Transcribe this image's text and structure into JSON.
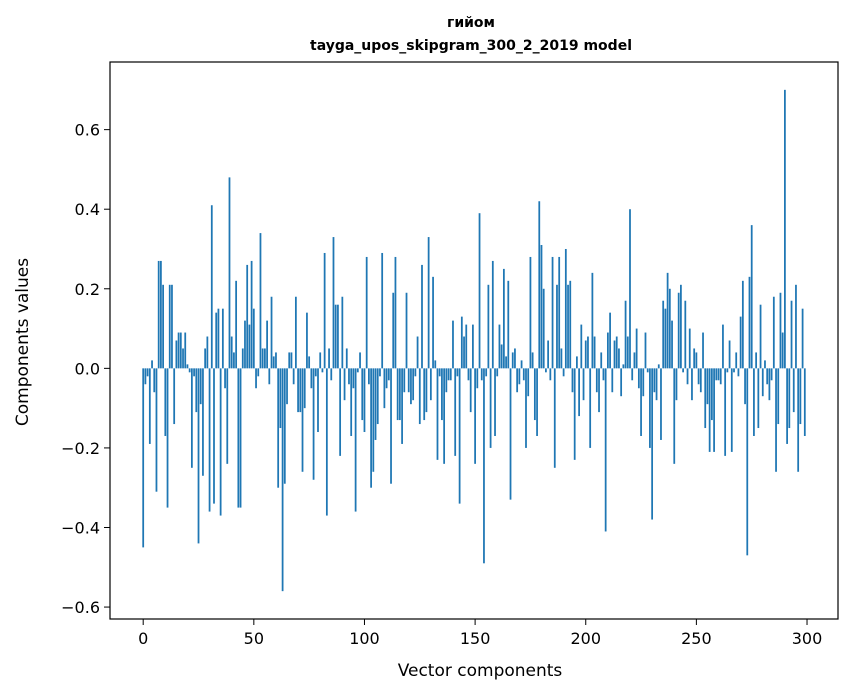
{
  "chart_data": {
    "type": "bar",
    "title_line1": "гийом",
    "title_line2": "tayga_upos_skipgram_300_2_2019 model",
    "xlabel": "Vector components",
    "ylabel": "Components values",
    "xlim": [
      -15,
      314
    ],
    "ylim": [
      -0.63,
      0.77
    ],
    "xticks": [
      0,
      50,
      100,
      150,
      200,
      250,
      300
    ],
    "xtick_labels": [
      "0",
      "50",
      "100",
      "150",
      "200",
      "250",
      "300"
    ],
    "yticks": [
      -0.6,
      -0.4,
      -0.2,
      0.0,
      0.2,
      0.4,
      0.6
    ],
    "ytick_labels": [
      "−0.6",
      "−0.4",
      "−0.2",
      "0.0",
      "0.2",
      "0.4",
      "0.6"
    ],
    "bar_color": "#1f77b4",
    "values": [
      -0.45,
      -0.04,
      -0.02,
      -0.19,
      0.02,
      -0.06,
      -0.31,
      0.27,
      0.27,
      0.21,
      -0.17,
      -0.35,
      0.21,
      0.21,
      -0.14,
      0.07,
      0.09,
      0.09,
      0.05,
      0.09,
      0.01,
      -0.01,
      -0.25,
      -0.02,
      -0.11,
      -0.44,
      -0.09,
      -0.27,
      0.05,
      0.08,
      -0.36,
      0.41,
      -0.34,
      0.14,
      0.15,
      -0.37,
      0.15,
      -0.05,
      -0.24,
      0.48,
      0.08,
      0.04,
      0.22,
      -0.35,
      -0.35,
      0.05,
      0.12,
      0.26,
      0.11,
      0.27,
      0.15,
      -0.05,
      -0.02,
      0.34,
      0.05,
      0.05,
      0.12,
      -0.04,
      0.18,
      0.03,
      0.04,
      -0.3,
      -0.15,
      -0.56,
      -0.29,
      -0.09,
      0.04,
      0.04,
      -0.04,
      0.18,
      -0.11,
      -0.11,
      -0.26,
      -0.1,
      0.14,
      0.03,
      -0.05,
      -0.28,
      -0.02,
      -0.16,
      0.04,
      -0.01,
      0.29,
      -0.37,
      0.05,
      -0.03,
      0.33,
      0.16,
      0.16,
      -0.22,
      0.18,
      -0.08,
      0.05,
      -0.04,
      -0.17,
      -0.05,
      -0.36,
      -0.01,
      0.04,
      -0.13,
      -0.16,
      0.28,
      -0.04,
      -0.3,
      -0.26,
      -0.18,
      -0.14,
      -0.02,
      0.29,
      -0.1,
      -0.05,
      -0.03,
      -0.29,
      0.19,
      0.28,
      -0.13,
      -0.13,
      -0.19,
      -0.06,
      0.19,
      -0.06,
      -0.09,
      -0.08,
      -0.02,
      0.08,
      -0.14,
      0.26,
      -0.13,
      -0.11,
      0.33,
      -0.08,
      0.23,
      0.02,
      -0.23,
      -0.02,
      -0.13,
      -0.24,
      -0.06,
      -0.03,
      -0.03,
      0.12,
      -0.22,
      -0.02,
      -0.34,
      0.13,
      0.08,
      0.11,
      -0.03,
      -0.11,
      0.11,
      -0.24,
      -0.05,
      0.39,
      -0.03,
      -0.49,
      -0.02,
      0.21,
      -0.2,
      0.27,
      -0.17,
      -0.02,
      0.11,
      0.06,
      0.25,
      0.03,
      0.22,
      -0.33,
      0.04,
      0.05,
      -0.06,
      -0.04,
      0.02,
      -0.03,
      -0.2,
      -0.07,
      0.28,
      0.04,
      -0.13,
      -0.17,
      0.42,
      0.31,
      0.2,
      -0.01,
      0.07,
      -0.03,
      0.28,
      -0.25,
      0.21,
      0.28,
      0.05,
      -0.02,
      0.3,
      0.21,
      0.22,
      -0.06,
      -0.23,
      0.03,
      -0.12,
      0.11,
      -0.08,
      0.07,
      0.08,
      -0.2,
      0.24,
      0.08,
      -0.06,
      -0.11,
      0.04,
      -0.03,
      -0.41,
      0.09,
      0.14,
      -0.06,
      0.07,
      0.08,
      0.05,
      -0.07,
      0.01,
      0.17,
      0.08,
      0.4,
      -0.03,
      0.04,
      0.1,
      -0.05,
      -0.17,
      -0.07,
      0.09,
      -0.01,
      -0.2,
      -0.38,
      -0.06,
      -0.08,
      0.01,
      -0.18,
      0.17,
      0.15,
      0.24,
      0.2,
      0.12,
      -0.24,
      -0.08,
      0.19,
      0.21,
      -0.01,
      0.17,
      -0.04,
      0.1,
      -0.08,
      0.05,
      0.04,
      -0.04,
      -0.06,
      0.09,
      -0.15,
      -0.09,
      -0.21,
      -0.13,
      -0.21,
      -0.03,
      -0.03,
      -0.04,
      0.11,
      -0.22,
      -0.01,
      0.07,
      -0.21,
      -0.01,
      0.04,
      -0.02,
      0.13,
      0.22,
      -0.09,
      -0.47,
      0.23,
      0.36,
      -0.17,
      0.04,
      -0.15,
      0.16,
      -0.07,
      0.02,
      -0.04,
      -0.08,
      -0.03,
      0.18,
      -0.26,
      -0.14,
      0.19,
      0.09,
      0.7,
      -0.19,
      -0.15,
      0.17,
      -0.11,
      0.21,
      -0.26,
      -0.14,
      0.15,
      -0.17
    ]
  }
}
